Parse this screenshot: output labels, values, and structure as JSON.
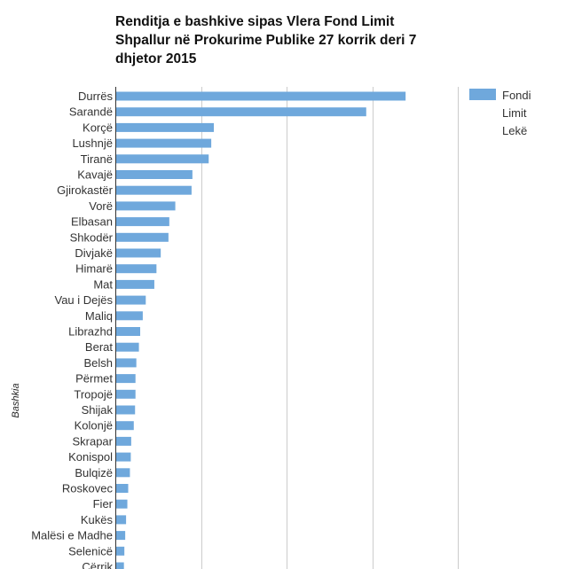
{
  "chart_data": {
    "type": "bar",
    "orientation": "horizontal",
    "title": "Renditja e bashkive sipas Vlera Fond Limit Shpallur në Prokurime Publike 27 korrik deri 7 dhjetor 2015",
    "title_lines": [
      "Renditja e bashkive sipas Vlera Fond Limit",
      "Shpallur në Prokurime Publike 27 korrik deri 7",
      "dhjetor 2015"
    ],
    "ylabel": "Bashkia",
    "xlabel": "",
    "xlim": [
      0,
      4000
    ],
    "grid": true,
    "legend": {
      "position": "top-right",
      "entries": [
        "Fondi",
        "Limit",
        "Lekë"
      ]
    },
    "color": "#6fa8dc",
    "categories": [
      "Durrës",
      "Sarandë",
      "Korçë",
      "Lushnjë",
      "Tiranë",
      "Kavajë",
      "Gjirokastër",
      "Vorë",
      "Elbasan",
      "Shkodër",
      "Divjakë",
      "Himarë",
      "Mat",
      "Vau i Dejës",
      "Maliq",
      "Librazhd",
      "Berat",
      "Belsh",
      "Përmet",
      "Tropojë",
      "Shijak",
      "Kolonjë",
      "Skrapar",
      "Konispol",
      "Bulqizë",
      "Roskovec",
      "Fier",
      "Kukës",
      "Malësi e Madhe",
      "Selenicë",
      "Cërrik"
    ],
    "values": [
      3380,
      2920,
      1140,
      1110,
      1080,
      890,
      880,
      690,
      620,
      610,
      520,
      470,
      445,
      345,
      310,
      280,
      265,
      235,
      225,
      225,
      220,
      205,
      175,
      170,
      160,
      140,
      130,
      115,
      105,
      95,
      90
    ]
  }
}
